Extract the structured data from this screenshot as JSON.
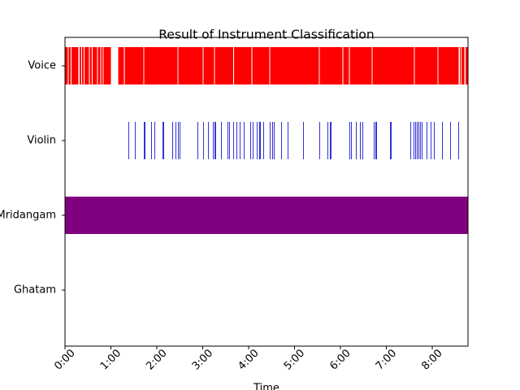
{
  "chart_data": {
    "type": "broken_barh",
    "title": "Result of Instrument Classification",
    "xlabel": "Time",
    "xlim": [
      0,
      526.7
    ],
    "xticks": [
      {
        "value": 0,
        "label": "0:00"
      },
      {
        "value": 60,
        "label": "1:00"
      },
      {
        "value": 120,
        "label": "2:00"
      },
      {
        "value": 180,
        "label": "3:00"
      },
      {
        "value": 240,
        "label": "4:00"
      },
      {
        "value": 300,
        "label": "5:00"
      },
      {
        "value": 360,
        "label": "6:00"
      },
      {
        "value": 420,
        "label": "7:00"
      },
      {
        "value": 480,
        "label": "8:00"
      }
    ],
    "series": [
      {
        "name": "Voice",
        "color": "#ff0000",
        "segments": [
          [
            0,
            3.7
          ],
          [
            4.8,
            2.6
          ],
          [
            8.5,
            9
          ],
          [
            19.1,
            2.1
          ],
          [
            22.3,
            2.1
          ],
          [
            25.5,
            5.8
          ],
          [
            32.4,
            2.6
          ],
          [
            36.1,
            5.8
          ],
          [
            43,
            3.2
          ],
          [
            47.3,
            2.1
          ],
          [
            50.4,
            9.6
          ],
          [
            69.6,
            7.4
          ],
          [
            78.1,
            24.4
          ],
          [
            103.5,
            43.6
          ],
          [
            148.1,
            31.9
          ],
          [
            181,
            13.9
          ],
          [
            195.9,
            23.9
          ],
          [
            220.9,
            22.8
          ],
          [
            244.8,
            22.3
          ],
          [
            268.1,
            63.8
          ],
          [
            332.9,
            29.7
          ],
          [
            363.7,
            7.4
          ],
          [
            372.2,
            28.7
          ],
          [
            401.9,
            54.2
          ],
          [
            457.1,
            29.8
          ],
          [
            487.9,
            26.6
          ],
          [
            516.1,
            1.1
          ],
          [
            518.2,
            3.8
          ],
          [
            523.5,
            3.2
          ]
        ]
      },
      {
        "name": "Violin",
        "color": "#0000cd",
        "segments": [
          [
            82.8,
            0.5
          ],
          [
            91.3,
            0.5
          ],
          [
            103,
            0.5
          ],
          [
            104.1,
            0.5
          ],
          [
            112.6,
            0.5
          ],
          [
            116.8,
            0.5
          ],
          [
            127.4,
            0.5
          ],
          [
            128.5,
            0.5
          ],
          [
            140.2,
            0.5
          ],
          [
            144.4,
            0.5
          ],
          [
            147.6,
            0.5
          ],
          [
            149.8,
            0.5
          ],
          [
            173.1,
            0.5
          ],
          [
            180.5,
            0.5
          ],
          [
            186.9,
            0.5
          ],
          [
            193.3,
            0.5
          ],
          [
            195.4,
            0.5
          ],
          [
            196.4,
            0.5
          ],
          [
            203.9,
            0.5
          ],
          [
            212.4,
            0.5
          ],
          [
            214.5,
            0.5
          ],
          [
            219.8,
            0.5
          ],
          [
            224.1,
            0.5
          ],
          [
            228.3,
            0.5
          ],
          [
            233.6,
            0.5
          ],
          [
            242.1,
            0.5
          ],
          [
            245.3,
            0.5
          ],
          [
            250.6,
            0.5
          ],
          [
            253.8,
            0.5
          ],
          [
            254.9,
            0.5
          ],
          [
            259.1,
            0.5
          ],
          [
            267.6,
            0.5
          ],
          [
            270.8,
            0.5
          ],
          [
            272.9,
            0.5
          ],
          [
            282.5,
            0.5
          ],
          [
            291,
            0.5
          ],
          [
            311.2,
            0.5
          ],
          [
            332.4,
            0.5
          ],
          [
            343,
            0.5
          ],
          [
            346.2,
            0.5
          ],
          [
            347.3,
            0.5
          ],
          [
            371.7,
            0.5
          ],
          [
            373.8,
            0.5
          ],
          [
            380.2,
            0.5
          ],
          [
            385.5,
            0.5
          ],
          [
            388.7,
            0.5
          ],
          [
            403.6,
            0.5
          ],
          [
            405.7,
            0.5
          ],
          [
            406.7,
            0.5
          ],
          [
            424.8,
            0.5
          ],
          [
            425.9,
            0.5
          ],
          [
            451.3,
            0.5
          ],
          [
            455.5,
            0.5
          ],
          [
            457.7,
            0.5
          ],
          [
            459.8,
            0.5
          ],
          [
            461.9,
            0.5
          ],
          [
            464,
            0.5
          ],
          [
            466.2,
            0.5
          ],
          [
            472.5,
            0.5
          ],
          [
            477.9,
            0.5
          ],
          [
            482.1,
            0.5
          ],
          [
            492.8,
            0.5
          ],
          [
            503.4,
            0.5
          ],
          [
            514,
            0.5
          ]
        ]
      },
      {
        "name": "Mridangam",
        "color": "#800080",
        "segments": [
          [
            0,
            526.7
          ]
        ]
      },
      {
        "name": "Ghatam",
        "color": "#008000",
        "segments": []
      }
    ]
  }
}
